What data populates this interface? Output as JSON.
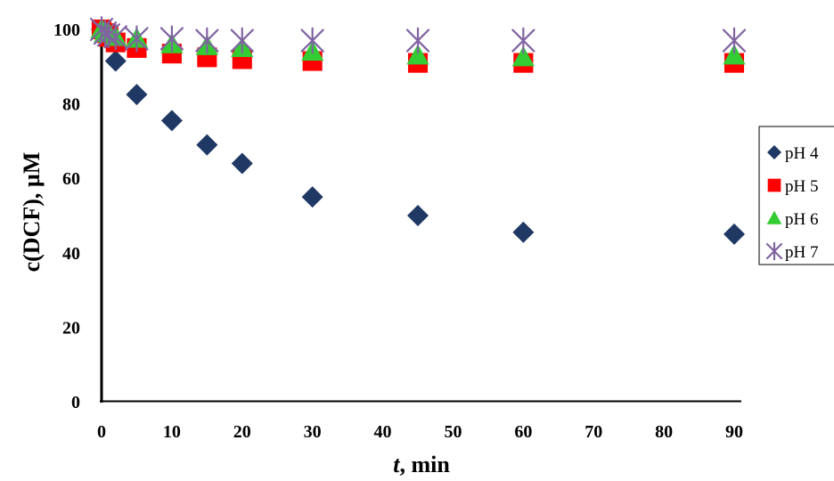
{
  "chart_data": {
    "type": "scatter",
    "title": "",
    "xlabel_italic": "t",
    "xlabel_rest": ", min",
    "ylabel": "c(DCF), µM",
    "x_ticks": [
      "0",
      "10",
      "20",
      "30",
      "40",
      "50",
      "60",
      "70",
      "80",
      "90"
    ],
    "y_ticks": [
      "0",
      "20",
      "40",
      "60",
      "80",
      "100"
    ],
    "xlim": [
      0,
      90
    ],
    "ylim": [
      0,
      100
    ],
    "grid": false,
    "legend_position": "right",
    "series": [
      {
        "name": "pH 4",
        "marker": "diamond",
        "color": "#1F3864",
        "points": [
          [
            0,
            100
          ],
          [
            0.5,
            99
          ],
          [
            1,
            98
          ],
          [
            2,
            91.5
          ],
          [
            5,
            82.5
          ],
          [
            10,
            75.5
          ],
          [
            15,
            69
          ],
          [
            20,
            64
          ],
          [
            30,
            55
          ],
          [
            45,
            50
          ],
          [
            60,
            45.5
          ],
          [
            90,
            45
          ]
        ]
      },
      {
        "name": "pH 5",
        "marker": "square",
        "color": "#FF0000",
        "points": [
          [
            0,
            100
          ],
          [
            0.5,
            99
          ],
          [
            1,
            98
          ],
          [
            2,
            96.5
          ],
          [
            5,
            95
          ],
          [
            10,
            93.5
          ],
          [
            15,
            92.5
          ],
          [
            20,
            92
          ],
          [
            30,
            91.5
          ],
          [
            45,
            91
          ],
          [
            60,
            91
          ],
          [
            90,
            91
          ]
        ]
      },
      {
        "name": "pH 6",
        "marker": "triangle",
        "color": "#33CC33",
        "points": [
          [
            0,
            100
          ],
          [
            0.5,
            99
          ],
          [
            1,
            99
          ],
          [
            2,
            98
          ],
          [
            5,
            97.5
          ],
          [
            10,
            96
          ],
          [
            15,
            95.5
          ],
          [
            20,
            95
          ],
          [
            30,
            94
          ],
          [
            45,
            93
          ],
          [
            60,
            92.5
          ],
          [
            90,
            93
          ]
        ]
      },
      {
        "name": "pH 7",
        "marker": "asterisk",
        "color": "#8064A2",
        "points": [
          [
            0,
            100
          ],
          [
            0.5,
            99
          ],
          [
            1,
            98.5
          ],
          [
            2,
            98
          ],
          [
            5,
            97.5
          ],
          [
            10,
            97.5
          ],
          [
            15,
            97
          ],
          [
            20,
            97
          ],
          [
            30,
            97
          ],
          [
            45,
            97
          ],
          [
            60,
            97
          ],
          [
            90,
            97
          ]
        ]
      }
    ]
  }
}
